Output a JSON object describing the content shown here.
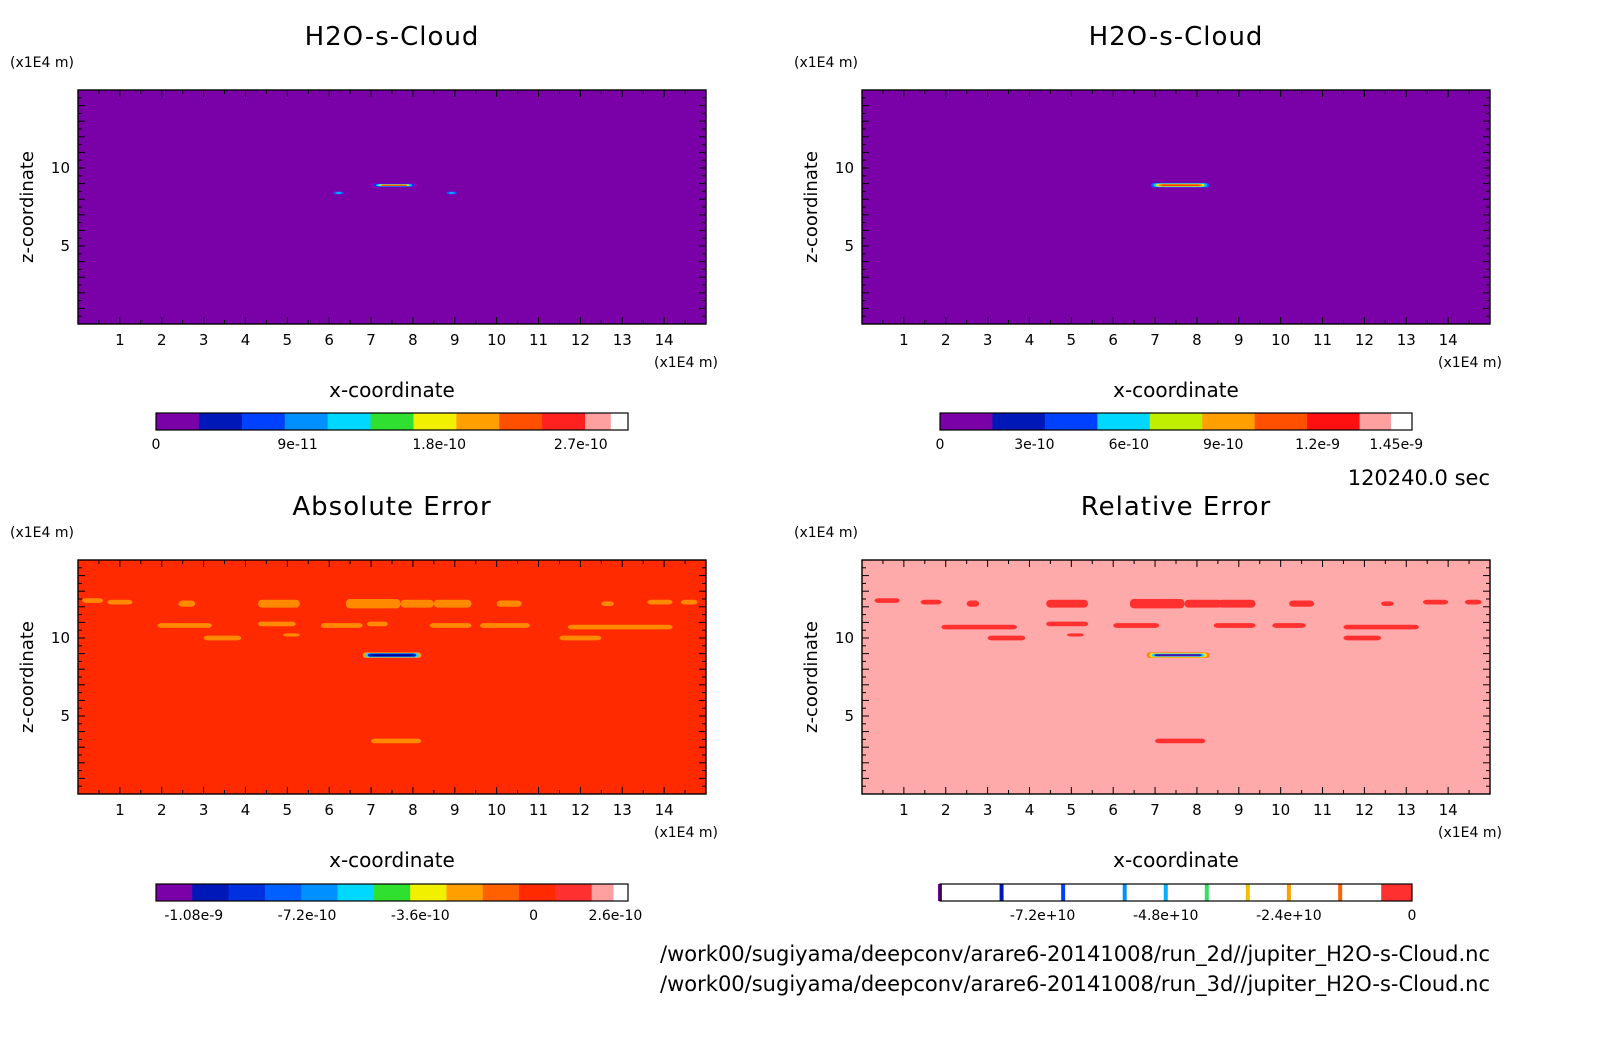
{
  "figure": {
    "time_label": "120240.0 sec",
    "file_lines": [
      "/work00/sugiyama/deepconv/arare6-20141008/run_2d//jupiter_H2O-s-Cloud.nc",
      "/work00/sugiyama/deepconv/arare6-20141008/run_3d//jupiter_H2O-s-Cloud.nc"
    ]
  },
  "chart_data": [
    {
      "type": "heatmap",
      "title": "H2O-s-Cloud",
      "xlabel": "x-coordinate",
      "ylabel": "z-coordinate",
      "x_unit": "(x1E4 m)",
      "y_unit": "(x1E4 m)",
      "xlim": [
        0,
        15
      ],
      "ylim": [
        0,
        15
      ],
      "x_ticks": [
        1,
        2,
        3,
        4,
        5,
        6,
        7,
        8,
        9,
        10,
        11,
        12,
        13,
        14
      ],
      "y_ticks": [
        5,
        10
      ],
      "background_color": "#7a00a8",
      "features": [
        {
          "x0": 7.0,
          "x1": 8.1,
          "z": 8.9,
          "thickness": 0.25,
          "colors": [
            "#a000c0",
            "#0030ff",
            "#00d0ff",
            "#ffe000",
            "#ff3000"
          ]
        },
        {
          "x0": 6.1,
          "x1": 6.35,
          "z": 8.4,
          "thickness": 0.18,
          "colors": [
            "#2050ff",
            "#00d0ff"
          ]
        },
        {
          "x0": 8.8,
          "x1": 9.05,
          "z": 8.4,
          "thickness": 0.18,
          "colors": [
            "#2050ff",
            "#00d0ff"
          ]
        }
      ],
      "colorbar": {
        "colors": [
          "#7a00a8",
          "#0018b8",
          "#0040ff",
          "#0090ff",
          "#00d8ff",
          "#30e030",
          "#f0f000",
          "#ffa000",
          "#ff5000",
          "#ff2020",
          "#ffa0a0"
        ],
        "tick_labels": [
          "0",
          "9e-11",
          "1.8e-10",
          "2.7e-10"
        ],
        "tick_values": [
          0,
          9e-11,
          1.8e-10,
          2.7e-10
        ],
        "range": [
          0,
          3e-10
        ]
      }
    },
    {
      "type": "heatmap",
      "title": "H2O-s-Cloud",
      "xlabel": "x-coordinate",
      "ylabel": "z-coordinate",
      "x_unit": "(x1E4 m)",
      "y_unit": "(x1E4 m)",
      "xlim": [
        0,
        15
      ],
      "ylim": [
        0,
        15
      ],
      "x_ticks": [
        1,
        2,
        3,
        4,
        5,
        6,
        7,
        8,
        9,
        10,
        11,
        12,
        13,
        14
      ],
      "y_ticks": [
        5,
        10
      ],
      "background_color": "#7a00a8",
      "features": [
        {
          "x0": 6.9,
          "x1": 8.3,
          "z": 8.9,
          "thickness": 0.3,
          "colors": [
            "#2050ff",
            "#00d0ff",
            "#ffe000",
            "#ff8000",
            "#ff2000"
          ]
        }
      ],
      "colorbar": {
        "colors": [
          "#7a00a8",
          "#0018b8",
          "#0040ff",
          "#00d8ff",
          "#c0f000",
          "#ffa000",
          "#ff5000",
          "#ff1010",
          "#ffa0a0"
        ],
        "tick_labels": [
          "0",
          "3e-10",
          "6e-10",
          "9e-10",
          "1.2e-9",
          "1.45e-9"
        ],
        "tick_values": [
          0,
          3e-10,
          6e-10,
          9e-10,
          1.2e-09,
          1.45e-09
        ],
        "range": [
          0,
          1.5e-09
        ]
      }
    },
    {
      "type": "heatmap",
      "title": "Absolute Error",
      "xlabel": "x-coordinate",
      "ylabel": "z-coordinate",
      "x_unit": "(x1E4 m)",
      "y_unit": "(x1E4 m)",
      "xlim": [
        0,
        15
      ],
      "ylim": [
        0,
        15
      ],
      "x_ticks": [
        1,
        2,
        3,
        4,
        5,
        6,
        7,
        8,
        9,
        10,
        11,
        12,
        13,
        14
      ],
      "y_ticks": [
        5,
        10
      ],
      "background_color": "#ff2a00",
      "patch_color": "#ff8a00",
      "patches": [
        [
          0.1,
          12.4,
          0.5,
          0.3
        ],
        [
          0.7,
          12.3,
          0.6,
          0.3
        ],
        [
          2.4,
          12.2,
          0.4,
          0.4
        ],
        [
          4.3,
          12.2,
          1.0,
          0.5
        ],
        [
          6.4,
          12.2,
          1.3,
          0.6
        ],
        [
          7.7,
          12.2,
          0.8,
          0.5
        ],
        [
          8.5,
          12.2,
          0.9,
          0.5
        ],
        [
          10.0,
          12.2,
          0.6,
          0.4
        ],
        [
          12.5,
          12.2,
          0.3,
          0.3
        ],
        [
          13.6,
          12.3,
          0.6,
          0.3
        ],
        [
          14.4,
          12.3,
          0.4,
          0.3
        ],
        [
          1.9,
          10.8,
          1.3,
          0.3
        ],
        [
          4.3,
          10.9,
          0.9,
          0.3
        ],
        [
          5.8,
          10.8,
          1.0,
          0.3
        ],
        [
          6.9,
          10.9,
          0.5,
          0.3
        ],
        [
          8.4,
          10.8,
          1.0,
          0.3
        ],
        [
          9.6,
          10.8,
          1.2,
          0.3
        ],
        [
          11.7,
          10.7,
          2.5,
          0.3
        ],
        [
          3.0,
          10.0,
          0.9,
          0.3
        ],
        [
          4.9,
          10.2,
          0.4,
          0.2
        ],
        [
          11.5,
          10.0,
          1.0,
          0.3
        ],
        [
          7.0,
          3.4,
          1.2,
          0.3
        ]
      ],
      "features": [
        {
          "x0": 6.8,
          "x1": 8.2,
          "z": 8.9,
          "thickness": 0.35,
          "colors": [
            "#ffa000",
            "#30d0ff",
            "#0030d0",
            "#0010a0",
            "#0000a0"
          ]
        }
      ],
      "colorbar": {
        "colors": [
          "#7a00a8",
          "#0018b8",
          "#0030e0",
          "#0060ff",
          "#0090ff",
          "#00d8ff",
          "#30e030",
          "#f0f000",
          "#ffa000",
          "#ff6000",
          "#ff2a00",
          "#ff3030",
          "#ffa0a0"
        ],
        "tick_labels": [
          "-1.08e-9",
          "-7.2e-10",
          "-3.6e-10",
          "0",
          "2.6e-10"
        ],
        "tick_values": [
          -1.08e-09,
          -7.2e-10,
          -3.6e-10,
          0,
          2.6e-10
        ],
        "range": [
          -1.2e-09,
          3e-10
        ]
      }
    },
    {
      "type": "heatmap",
      "title": "Relative Error",
      "xlabel": "x-coordinate",
      "ylabel": "z-coordinate",
      "x_unit": "(x1E4 m)",
      "y_unit": "(x1E4 m)",
      "xlim": [
        0,
        15
      ],
      "ylim": [
        0,
        15
      ],
      "x_ticks": [
        1,
        2,
        3,
        4,
        5,
        6,
        7,
        8,
        9,
        10,
        11,
        12,
        13,
        14
      ],
      "y_ticks": [
        5,
        10
      ],
      "background_color": "#ffaaaa",
      "patch_color": "#ff3030",
      "patches": [
        [
          0.3,
          12.4,
          0.6,
          0.3
        ],
        [
          1.4,
          12.3,
          0.5,
          0.3
        ],
        [
          2.5,
          12.2,
          0.3,
          0.4
        ],
        [
          4.4,
          12.2,
          1.0,
          0.5
        ],
        [
          6.4,
          12.2,
          1.3,
          0.6
        ],
        [
          7.7,
          12.2,
          0.9,
          0.5
        ],
        [
          8.5,
          12.2,
          0.9,
          0.5
        ],
        [
          10.2,
          12.2,
          0.6,
          0.4
        ],
        [
          12.4,
          12.2,
          0.3,
          0.3
        ],
        [
          13.4,
          12.3,
          0.6,
          0.3
        ],
        [
          14.4,
          12.3,
          0.4,
          0.3
        ],
        [
          1.9,
          10.7,
          1.8,
          0.3
        ],
        [
          4.4,
          10.9,
          1.0,
          0.3
        ],
        [
          6.0,
          10.8,
          1.1,
          0.3
        ],
        [
          8.4,
          10.8,
          1.0,
          0.3
        ],
        [
          9.8,
          10.8,
          0.8,
          0.3
        ],
        [
          11.5,
          10.7,
          1.8,
          0.3
        ],
        [
          3.0,
          10.0,
          0.9,
          0.3
        ],
        [
          4.9,
          10.2,
          0.4,
          0.2
        ],
        [
          11.5,
          10.0,
          0.9,
          0.3
        ],
        [
          7.0,
          3.4,
          1.2,
          0.3
        ]
      ],
      "features": [
        {
          "x0": 6.8,
          "x1": 8.3,
          "z": 8.9,
          "thickness": 0.35,
          "colors": [
            "#ff8000",
            "#ffe000",
            "#30d0ff",
            "#0030d0",
            "#7000a0"
          ]
        }
      ],
      "colorbar": {
        "type": "discrete-lines",
        "line_colors": [
          "#7a00a8",
          "#0018b8",
          "#0040ff",
          "#0090ff",
          "#00b0ff",
          "#30e060",
          "#f0c000",
          "#ffa000",
          "#ff6000"
        ],
        "line_values": [
          -92000000000.0,
          -80000000000.0,
          -68000000000.0,
          -56000000000.0,
          -48000000000.0,
          -40000000000.0,
          -32000000000.0,
          -24000000000.0,
          -14000000000.0
        ],
        "end_fill_color": "#ff3030",
        "end_fill_range": [
          -6000000000.0,
          0
        ],
        "tick_labels": [
          "-7.2e+10",
          "-4.8e+10",
          "-2.4e+10",
          "0"
        ],
        "tick_values": [
          -72000000000.0,
          -48000000000.0,
          -24000000000.0,
          0
        ],
        "range": [
          -92000000000.0,
          0
        ]
      }
    }
  ]
}
